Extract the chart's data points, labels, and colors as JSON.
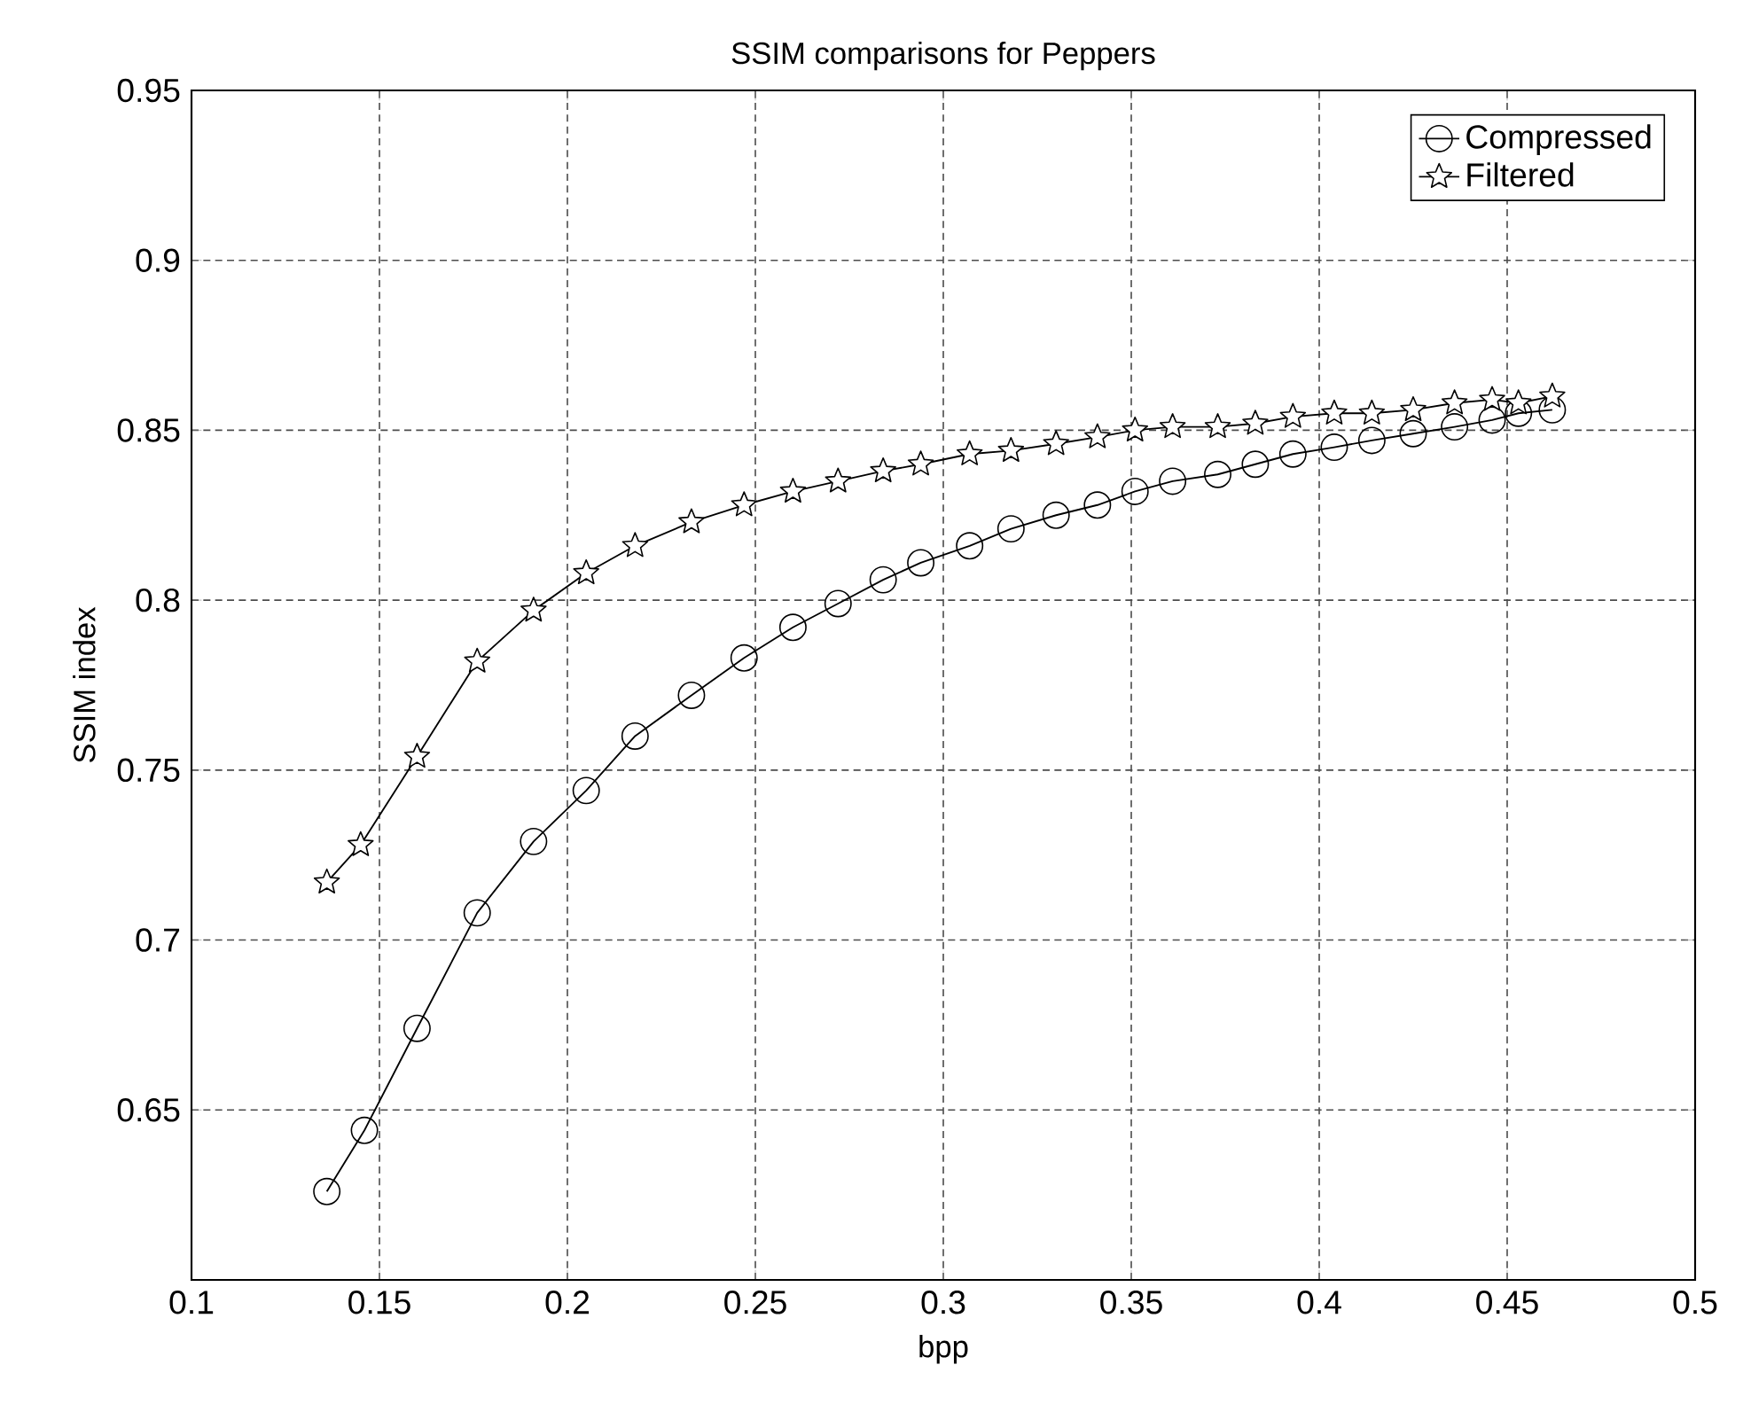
{
  "chart_data": {
    "type": "line",
    "title": "SSIM comparisons for Peppers",
    "xlabel": "bpp",
    "ylabel": "SSIM index",
    "xlim": [
      0.1,
      0.5
    ],
    "ylim": [
      0.6,
      0.95
    ],
    "xticks": [
      0.1,
      0.15,
      0.2,
      0.25,
      0.3,
      0.35,
      0.4,
      0.45,
      0.5
    ],
    "yticks": [
      0.65,
      0.7,
      0.75,
      0.8,
      0.85,
      0.9,
      0.95
    ],
    "grid": true,
    "legend": "top right",
    "line_style": "solid",
    "series": [
      {
        "name": "Compressed",
        "color": "#000000",
        "marker": "circle",
        "x": [
          0.136,
          0.146,
          0.16,
          0.176,
          0.191,
          0.205,
          0.218,
          0.233,
          0.247,
          0.26,
          0.272,
          0.284,
          0.294,
          0.307,
          0.318,
          0.33,
          0.341,
          0.351,
          0.361,
          0.373,
          0.383,
          0.393,
          0.404,
          0.414,
          0.425,
          0.436,
          0.446,
          0.453,
          0.462
        ],
        "values": [
          0.626,
          0.644,
          0.674,
          0.708,
          0.729,
          0.744,
          0.76,
          0.772,
          0.783,
          0.792,
          0.799,
          0.806,
          0.811,
          0.816,
          0.821,
          0.825,
          0.828,
          0.832,
          0.835,
          0.837,
          0.84,
          0.843,
          0.845,
          0.847,
          0.849,
          0.851,
          0.853,
          0.855,
          0.856
        ]
      },
      {
        "name": "Filtered",
        "color": "#000000",
        "marker": "star",
        "x": [
          0.136,
          0.145,
          0.16,
          0.176,
          0.191,
          0.205,
          0.218,
          0.233,
          0.247,
          0.26,
          0.272,
          0.284,
          0.294,
          0.307,
          0.318,
          0.33,
          0.341,
          0.351,
          0.361,
          0.373,
          0.383,
          0.393,
          0.404,
          0.414,
          0.425,
          0.436,
          0.446,
          0.453,
          0.462
        ],
        "values": [
          0.717,
          0.728,
          0.754,
          0.782,
          0.797,
          0.808,
          0.816,
          0.823,
          0.828,
          0.832,
          0.835,
          0.838,
          0.84,
          0.843,
          0.844,
          0.846,
          0.848,
          0.85,
          0.851,
          0.851,
          0.852,
          0.854,
          0.855,
          0.855,
          0.856,
          0.858,
          0.859,
          0.858,
          0.86
        ]
      }
    ]
  }
}
